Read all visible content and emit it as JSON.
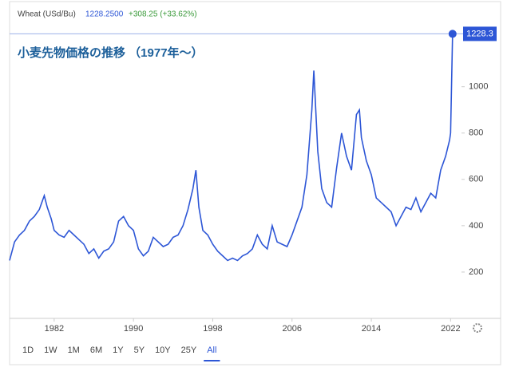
{
  "header": {
    "symbol": "Wheat (USd/Bu)",
    "price": "1228.2500",
    "change": "+308.25 (+33.62%)"
  },
  "range_buttons": [
    "1D",
    "1W",
    "1M",
    "6M",
    "1Y",
    "5Y",
    "10Y",
    "25Y",
    "All"
  ],
  "selected_range": "All",
  "chart_data": {
    "type": "line",
    "title": "小麦先物価格の推移 （1977年～）",
    "x": [
      1977.5,
      1978,
      1978.5,
      1979,
      1979.5,
      1980,
      1980.5,
      1981,
      1981.3,
      1981.7,
      1982,
      1982.5,
      1983,
      1983.5,
      1984,
      1984.5,
      1985,
      1985.5,
      1986,
      1986.5,
      1987,
      1987.5,
      1988,
      1988.5,
      1989,
      1989.5,
      1990,
      1990.5,
      1991,
      1991.5,
      1992,
      1992.5,
      1993,
      1993.5,
      1994,
      1994.5,
      1995,
      1995.5,
      1996,
      1996.3,
      1996.6,
      1997,
      1997.5,
      1998,
      1998.5,
      1999,
      1999.5,
      2000,
      2000.5,
      2001,
      2001.5,
      2002,
      2002.5,
      2003,
      2003.5,
      2004,
      2004.5,
      2005,
      2005.5,
      2006,
      2006.5,
      2007,
      2007.5,
      2008,
      2008.2,
      2008.6,
      2009,
      2009.5,
      2010,
      2010.5,
      2011,
      2011.5,
      2012,
      2012.5,
      2012.8,
      2013,
      2013.5,
      2014,
      2014.5,
      2015,
      2015.5,
      2016,
      2016.5,
      2017,
      2017.5,
      2018,
      2018.5,
      2019,
      2019.5,
      2020,
      2020.5,
      2021,
      2021.5,
      2021.9,
      2022,
      2022.2
    ],
    "series": [
      {
        "name": "Wheat (USd/Bu)",
        "color": "#2d56d6",
        "values": [
          250,
          330,
          360,
          380,
          420,
          440,
          470,
          530,
          480,
          430,
          380,
          360,
          350,
          380,
          360,
          340,
          320,
          280,
          300,
          260,
          290,
          300,
          330,
          420,
          440,
          400,
          380,
          300,
          270,
          290,
          350,
          330,
          310,
          320,
          350,
          360,
          400,
          470,
          560,
          640,
          480,
          380,
          360,
          320,
          290,
          270,
          250,
          260,
          250,
          270,
          280,
          300,
          360,
          320,
          300,
          400,
          330,
          320,
          310,
          360,
          420,
          480,
          620,
          900,
          1070,
          720,
          560,
          500,
          480,
          650,
          800,
          700,
          640,
          880,
          900,
          780,
          680,
          620,
          520,
          500,
          480,
          460,
          400,
          440,
          480,
          470,
          520,
          460,
          500,
          540,
          520,
          640,
          700,
          770,
          800,
          1228.25
        ]
      }
    ],
    "current_value_label": 1228.3,
    "xlim": [
      1977.5,
      2023.1
    ],
    "xticks": [
      1982,
      1990,
      1998,
      2006,
      2014,
      2022
    ],
    "ylim": [
      0,
      1240
    ],
    "yticks": [
      200,
      400,
      600,
      800,
      1000
    ],
    "grid": false
  }
}
